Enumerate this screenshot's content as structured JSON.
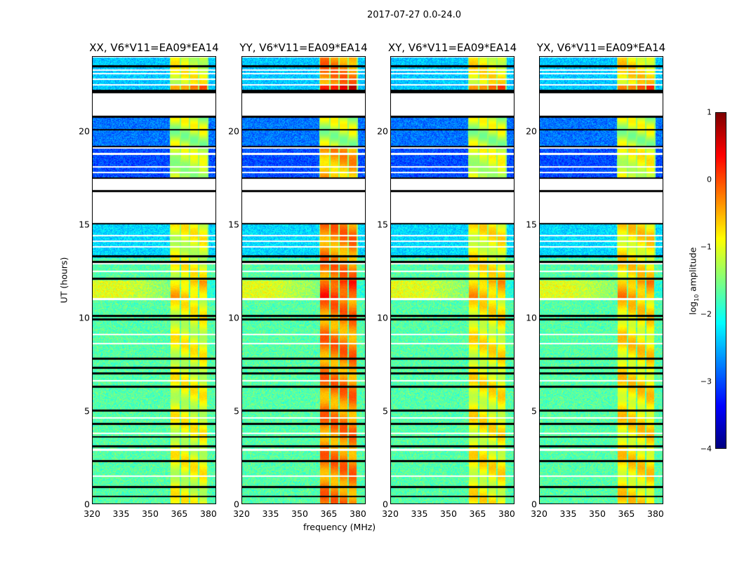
{
  "chart_data": {
    "type": "heatmap",
    "suptitle": "2017-07-27 0.0-24.0",
    "xlabel": "frequency (MHz)",
    "ylabel": "UT (hours)",
    "xlim": [
      320,
      384
    ],
    "ylim": [
      0,
      24
    ],
    "xticks": [
      "320",
      "335",
      "350",
      "365",
      "380"
    ],
    "yticks": [
      "0",
      "5",
      "10",
      "15",
      "20"
    ],
    "panels": [
      {
        "title": "XX, V6*V11=EA09*EA14",
        "rfi_level": -1.0
      },
      {
        "title": "YY, V6*V11=EA09*EA14",
        "rfi_level": -0.3
      },
      {
        "title": "XY, V6*V11=EA09*EA14",
        "rfi_level": -0.9
      },
      {
        "title": "YX, V6*V11=EA09*EA14",
        "rfi_level": -0.8
      }
    ],
    "segments_hours_log10amp": [
      {
        "from": 0,
        "to": 11,
        "level": -1.7
      },
      {
        "from": 11,
        "to": 12,
        "level": -1.0
      },
      {
        "from": 12,
        "to": 13.2,
        "level": -1.7
      },
      {
        "from": 13.2,
        "to": 15.0,
        "level": -2.3
      },
      {
        "from": 15.0,
        "to": 15.1,
        "level": -3.2
      },
      {
        "from": 17.5,
        "to": 19.1,
        "level": -3.0
      },
      {
        "from": 19.2,
        "to": 20.8,
        "level": -2.8
      },
      {
        "from": 22.1,
        "to": 24,
        "level": -2.4
      }
    ],
    "rfi_bands_mhz": [
      [
        360.5,
        365.3
      ],
      [
        366,
        370
      ],
      [
        370.8,
        374.5
      ],
      [
        375.3,
        379.5
      ]
    ],
    "colorbar": {
      "label": "log10 amplitude",
      "label_main": "log",
      "label_sub": "10",
      "label_rest": " amplitude",
      "range": [
        -4,
        1
      ],
      "ticks": [
        "1",
        "0",
        "−1",
        "−2",
        "−3",
        "−4"
      ]
    }
  }
}
